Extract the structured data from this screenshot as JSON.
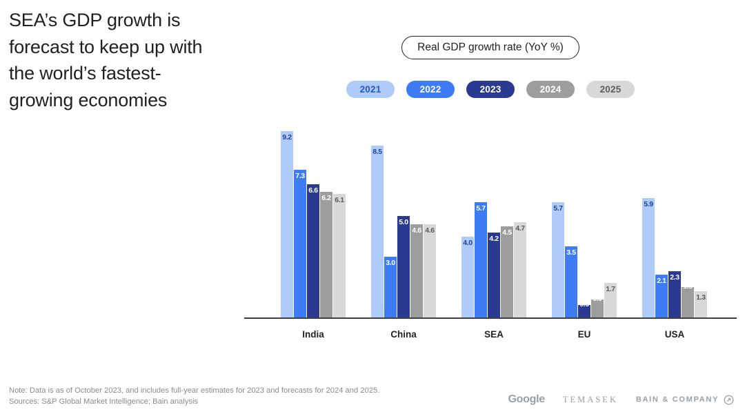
{
  "page": {
    "title": "SEA’s GDP growth is forecast to keep up with the world’s fastest-growing economies"
  },
  "chart": {
    "pill_label": "Real GDP growth rate (YoY %)"
  },
  "legend": {
    "items": [
      {
        "label": "2021",
        "bg": "#aecbfa",
        "fg": "#2a56c6"
      },
      {
        "label": "2022",
        "bg": "#3e7cf6",
        "fg": "#ffffff"
      },
      {
        "label": "2023",
        "bg": "#293a90",
        "fg": "#ffffff"
      },
      {
        "label": "2024",
        "bg": "#9d9d9d",
        "fg": "#ffffff"
      },
      {
        "label": "2025",
        "bg": "#d8d8d8",
        "fg": "#5c5e62"
      }
    ]
  },
  "chart_data": {
    "type": "bar",
    "title": "Real GDP growth rate (YoY %)",
    "categories": [
      "India",
      "China",
      "SEA",
      "EU",
      "USA"
    ],
    "series": [
      {
        "name": "2021",
        "color": "#aecbfa",
        "label_color": "#1e419f",
        "values": [
          9.2,
          8.5,
          4.0,
          5.7,
          5.9
        ]
      },
      {
        "name": "2022",
        "color": "#3e7cf6",
        "label_color": "#ffffff",
        "values": [
          7.3,
          3.0,
          5.7,
          3.5,
          2.1
        ]
      },
      {
        "name": "2023",
        "color": "#293a90",
        "label_color": "#ffffff",
        "values": [
          6.6,
          5.0,
          4.2,
          0.6,
          2.3
        ]
      },
      {
        "name": "2024",
        "color": "#9d9d9d",
        "label_color": "#ffffff",
        "values": [
          6.2,
          4.6,
          4.5,
          0.9,
          1.5
        ]
      },
      {
        "name": "2025",
        "color": "#d8d8d8",
        "label_color": "#55585c",
        "values": [
          6.1,
          4.6,
          4.7,
          1.7,
          1.3
        ]
      }
    ],
    "ylim": [
      0,
      10.2
    ],
    "grid": false,
    "legend_position": "top",
    "value_label_format": "0.0",
    "clipped_value_labels": [
      {
        "category": "EU",
        "series": "2023"
      },
      {
        "category": "EU",
        "series": "2024"
      },
      {
        "category": "USA",
        "series": "2024"
      }
    ]
  },
  "footer": {
    "note": "Note: Data is as of October 2023, and includes full-year estimates for 2023 and forecasts for 2024 and 2025.",
    "sources": "Sources: S&P Global Market Intelligence; Bain analysis"
  },
  "branding": {
    "google": "Google",
    "temasek": "TEMASEK",
    "bain": "BAIN & COMPANY"
  }
}
